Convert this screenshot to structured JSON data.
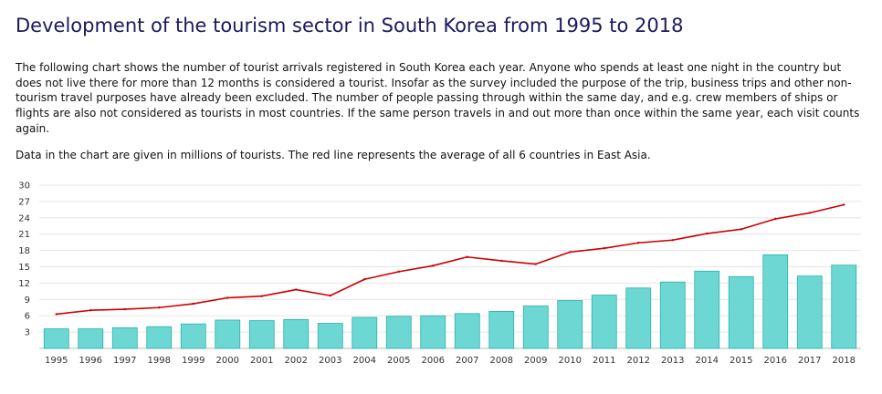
{
  "page": {
    "title": "Development of the tourism sector in South Korea from 1995 to 2018",
    "description": "The following chart shows the number of tourist arrivals registered in South Korea each year. Anyone who spends at least one night in the country but does not live there for more than 12 months is considered a tourist. Insofar as the survey included the purpose of the trip, business trips and other non-tourism travel purposes have already been excluded. The number of people passing through within the same day, and e.g. crew members of ships or flights are also not considered as tourists in most countries. If the same person travels in and out more than once within the same year, each visit counts again.",
    "note": "Data in the chart are given in millions of tourists. The red line represents the average of all 6 countries in East Asia."
  },
  "chart_data": {
    "type": "bar",
    "categories": [
      "1995",
      "1996",
      "1997",
      "1998",
      "1999",
      "2000",
      "2001",
      "2002",
      "2003",
      "2004",
      "2005",
      "2006",
      "2007",
      "2008",
      "2009",
      "2010",
      "2011",
      "2012",
      "2013",
      "2014",
      "2015",
      "2016",
      "2017",
      "2018"
    ],
    "series": [
      {
        "type": "bar",
        "color": "#6dd8d3",
        "values": [
          3.6,
          3.6,
          3.8,
          4.0,
          4.5,
          5.2,
          5.1,
          5.3,
          4.6,
          5.7,
          5.9,
          6.0,
          6.4,
          6.8,
          7.8,
          8.8,
          9.8,
          11.1,
          12.2,
          14.2,
          13.2,
          17.2,
          13.3,
          15.3
        ]
      },
      {
        "type": "line",
        "color": "#cc0000",
        "values": [
          6.3,
          7.0,
          7.2,
          7.5,
          8.2,
          9.3,
          9.6,
          10.8,
          9.7,
          12.7,
          14.1,
          15.2,
          16.8,
          16.1,
          15.5,
          17.7,
          18.4,
          19.4,
          19.9,
          21.1,
          21.9,
          23.8,
          24.9,
          26.4
        ]
      }
    ],
    "ylim": [
      0,
      30
    ],
    "yticks": [
      3,
      6,
      9,
      12,
      15,
      18,
      21,
      24,
      27,
      30
    ],
    "grid": true
  }
}
